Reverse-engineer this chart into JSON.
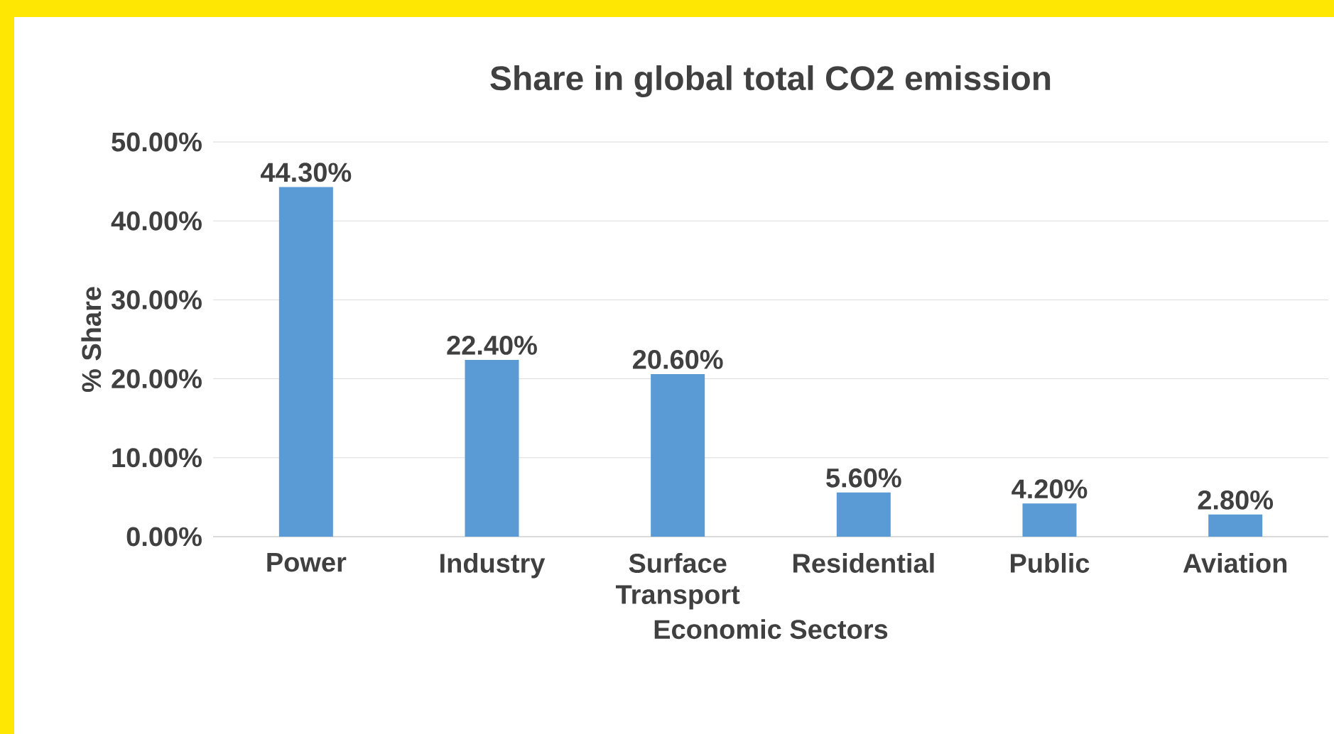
{
  "chart_data": {
    "type": "bar",
    "title": "Share in global total CO2 emission",
    "xlabel": "Economic Sectors",
    "ylabel": "% Share",
    "categories": [
      "Power",
      "Industry",
      "Surface Transport",
      "Residential",
      "Public",
      "Aviation"
    ],
    "values": [
      44.3,
      22.4,
      20.6,
      5.6,
      4.2,
      2.8
    ],
    "value_labels": [
      "44.30%",
      "22.40%",
      "20.60%",
      "5.60%",
      "4.20%",
      "2.80%"
    ],
    "color": "#5b9bd5",
    "ylim": [
      0,
      50
    ],
    "yticks": [
      {
        "value": 0,
        "label": "0.00%"
      },
      {
        "value": 10,
        "label": "10.00%"
      },
      {
        "value": 20,
        "label": "20.00%"
      },
      {
        "value": 30,
        "label": "30.00%"
      },
      {
        "value": 40,
        "label": "40.00%"
      },
      {
        "value": 50,
        "label": "50.00%"
      }
    ],
    "grid": "y"
  }
}
